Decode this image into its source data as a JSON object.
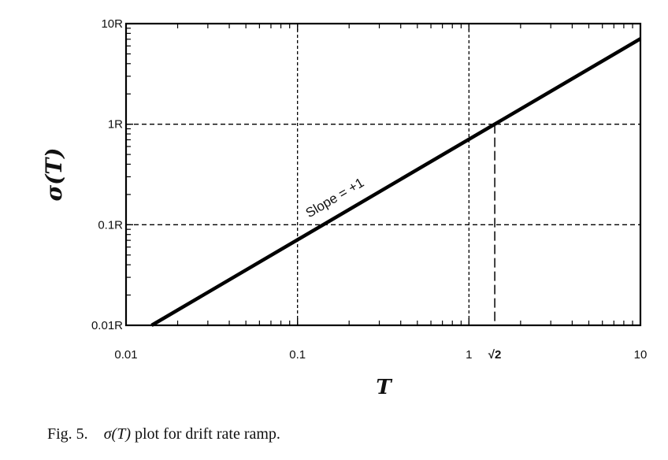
{
  "chart_data": {
    "type": "line",
    "x_scale": "log",
    "y_scale": "log",
    "xlim": [
      0.01,
      10
    ],
    "ylim": [
      0.01,
      10
    ],
    "x_ticks": [
      {
        "value": 0.01,
        "label": "0.01"
      },
      {
        "value": 0.1,
        "label": "0.1"
      },
      {
        "value": 1,
        "label": "1"
      },
      {
        "value": 10,
        "label": "10"
      }
    ],
    "special_x": {
      "value": 1.414,
      "label": "√2"
    },
    "y_ticks": [
      {
        "value": 0.01,
        "label": "0.01R"
      },
      {
        "value": 0.1,
        "label": "0.1R"
      },
      {
        "value": 1,
        "label": "1R"
      },
      {
        "value": 10,
        "label": "10R"
      }
    ],
    "xlabel": "T",
    "ylabel": "σ(T)",
    "grid": true,
    "series": [
      {
        "x": [
          0.0141,
          10
        ],
        "y": [
          0.01,
          7.07
        ]
      }
    ],
    "annotation": {
      "text": "Slope = +1",
      "x": 0.17,
      "y": 0.17
    }
  },
  "caption": {
    "prefix": "Fig. 5.",
    "math": "σ(T)",
    "text": "plot for drift rate ramp."
  }
}
